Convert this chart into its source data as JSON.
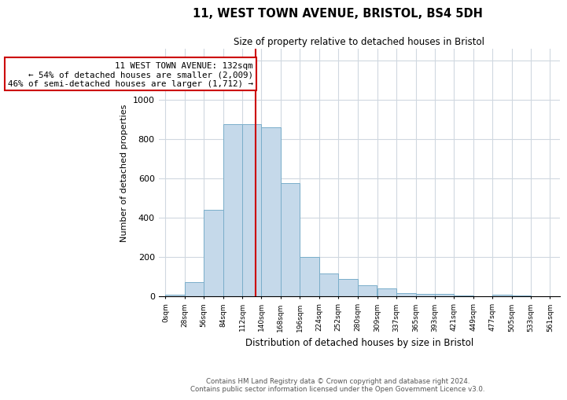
{
  "title1": "11, WEST TOWN AVENUE, BRISTOL, BS4 5DH",
  "title2": "Size of property relative to detached houses in Bristol",
  "xlabel": "Distribution of detached houses by size in Bristol",
  "ylabel": "Number of detached properties",
  "bin_width": 28,
  "bin_starts": [
    0,
    28,
    56,
    84,
    112,
    140,
    168,
    196,
    224,
    252,
    280,
    309,
    337,
    365,
    393,
    421,
    449,
    477,
    505,
    533
  ],
  "bar_heights": [
    5,
    70,
    440,
    875,
    875,
    860,
    575,
    200,
    115,
    85,
    55,
    40,
    15,
    10,
    10,
    3,
    0,
    5,
    3,
    0
  ],
  "bar_color": "#c5d9ea",
  "bar_edgecolor": "#7aaeca",
  "property_size": 132,
  "red_line_color": "#cc0000",
  "annotation_text": "11 WEST TOWN AVENUE: 132sqm\n← 54% of detached houses are smaller (2,009)\n46% of semi-detached houses are larger (1,712) →",
  "annotation_box_edgecolor": "#cc0000",
  "ylim": [
    0,
    1260
  ],
  "yticks": [
    0,
    200,
    400,
    600,
    800,
    1000,
    1200
  ],
  "tick_labels": [
    "0sqm",
    "28sqm",
    "56sqm",
    "84sqm",
    "112sqm",
    "140sqm",
    "168sqm",
    "196sqm",
    "224sqm",
    "252sqm",
    "280sqm",
    "309sqm",
    "337sqm",
    "365sqm",
    "393sqm",
    "421sqm",
    "449sqm",
    "477sqm",
    "505sqm",
    "533sqm",
    "561sqm"
  ],
  "footer1": "Contains HM Land Registry data © Crown copyright and database right 2024.",
  "footer2": "Contains public sector information licensed under the Open Government Licence v3.0.",
  "bg_color": "#ffffff",
  "grid_color": "#d0d8e0"
}
